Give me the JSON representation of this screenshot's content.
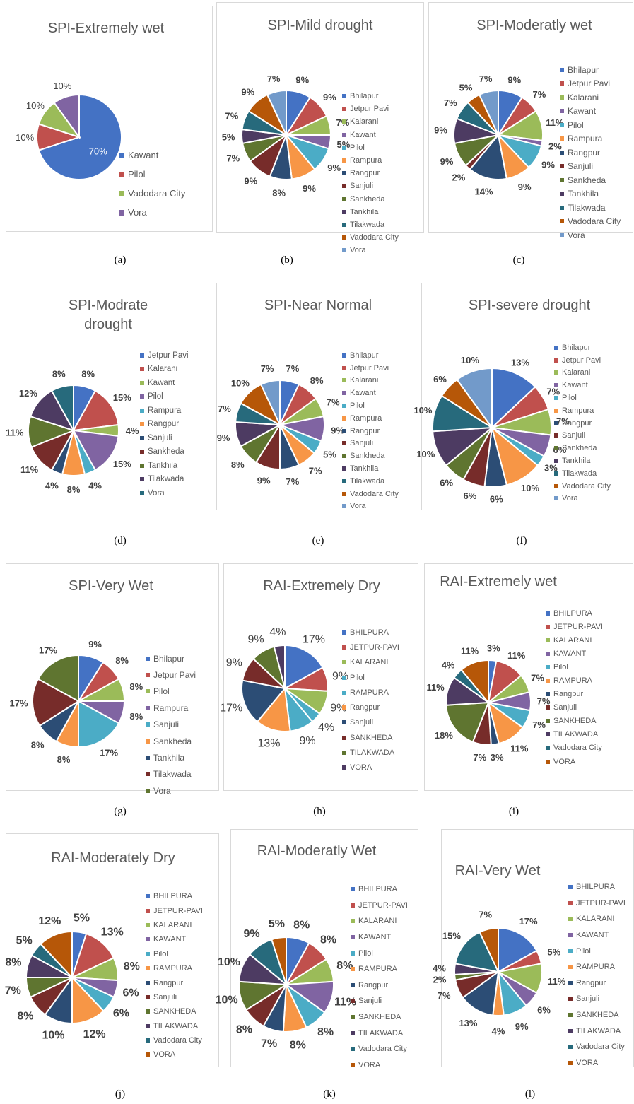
{
  "chart_data": [
    {
      "id": "a",
      "type": "pie",
      "title": "SPI-Extremely wet",
      "caption": "(a)",
      "categories": [
        "Kawant",
        "Pilol",
        "Vadodara City",
        "Vora"
      ],
      "values": [
        70,
        10,
        10,
        10
      ],
      "labels": [
        "70%",
        "10%",
        "10%",
        "10%"
      ],
      "colors": [
        "#4472C4",
        "#C0504D",
        "#9BBB59",
        "#8064A2"
      ]
    },
    {
      "id": "b",
      "type": "pie",
      "title": "SPI-Mild drought",
      "caption": "(b)",
      "categories": [
        "Bhilapur",
        "Jetpur Pavi",
        "Kalarani",
        "Kawant",
        "Pilol",
        "Rampura",
        "Rangpur",
        "Sanjuli",
        "Sankheda",
        "Tankhila",
        "Tilakwada",
        "Vadodara City",
        "Vora"
      ],
      "values": [
        9,
        9,
        7,
        5,
        9,
        9,
        8,
        9,
        7,
        5,
        7,
        9,
        7
      ],
      "labels": [
        "9%",
        "9%",
        "7%",
        "5%",
        "9%",
        "9%",
        "8%",
        "9%",
        "7%",
        "5%",
        "7%",
        "9%",
        "7%"
      ],
      "colors": [
        "#4472C4",
        "#C0504D",
        "#9BBB59",
        "#8064A2",
        "#4BACC6",
        "#F79646",
        "#2C4D75",
        "#772C2A",
        "#5F7530",
        "#4D3B62",
        "#276A7C",
        "#B65708",
        "#729ACA"
      ]
    },
    {
      "id": "c",
      "type": "pie",
      "title": "SPI-Moderatly wet",
      "caption": "(c)",
      "categories": [
        "Bhilapur",
        "Jetpur Pavi",
        "Kalarani",
        "Kawant",
        "Pilol",
        "Rampura",
        "Rangpur",
        "Sanjuli",
        "Sankheda",
        "Tankhila",
        "Tilakwada",
        "Vadodara City",
        "Vora"
      ],
      "values": [
        9,
        7,
        11,
        2,
        9,
        9,
        14,
        2,
        9,
        9,
        7,
        5,
        7
      ],
      "labels": [
        "9%",
        "7%",
        "11%",
        "2%",
        "9%",
        "9%",
        "14%",
        "2%",
        "9%",
        "9%",
        "7%",
        "5%",
        "7%"
      ],
      "colors": [
        "#4472C4",
        "#C0504D",
        "#9BBB59",
        "#8064A2",
        "#4BACC6",
        "#F79646",
        "#2C4D75",
        "#772C2A",
        "#5F7530",
        "#4D3B62",
        "#276A7C",
        "#B65708",
        "#729ACA"
      ]
    },
    {
      "id": "d",
      "type": "pie",
      "title": "SPI-Modrate drought",
      "caption": "(d)",
      "categories": [
        "Jetpur Pavi",
        "Kalarani",
        "Kawant",
        "Pilol",
        "Rampura",
        "Rangpur",
        "Sanjuli",
        "Sankheda",
        "Tankhila",
        "Tilakwada",
        "Vora"
      ],
      "values": [
        8,
        15,
        4,
        15,
        4,
        8,
        4,
        11,
        11,
        12,
        8
      ],
      "labels": [
        "8%",
        "15%",
        "4%",
        "15%",
        "4%",
        "8%",
        "4%",
        "11%",
        "11%",
        "12%",
        "8%"
      ],
      "colors": [
        "#4472C4",
        "#C0504D",
        "#9BBB59",
        "#8064A2",
        "#4BACC6",
        "#F79646",
        "#2C4D75",
        "#772C2A",
        "#5F7530",
        "#4D3B62",
        "#276A7C"
      ]
    },
    {
      "id": "e",
      "type": "pie",
      "title": "SPI-Near Normal",
      "caption": "(e)",
      "categories": [
        "Bhilapur",
        "Jetpur Pavi",
        "Kalarani",
        "Kawant",
        "Pilol",
        "Rampura",
        "Rangpur",
        "Sanjuli",
        "Sankheda",
        "Tankhila",
        "Tilakwada",
        "Vadodara City",
        "Vora"
      ],
      "values": [
        7,
        8,
        7,
        9,
        5,
        7,
        7,
        9,
        8,
        9,
        7,
        10,
        7
      ],
      "labels": [
        "7%",
        "8%",
        "7%",
        "9%",
        "5%",
        "7%",
        "7%",
        "9%",
        "8%",
        "9%",
        "7%",
        "10%",
        "7%"
      ],
      "colors": [
        "#4472C4",
        "#C0504D",
        "#9BBB59",
        "#8064A2",
        "#4BACC6",
        "#F79646",
        "#2C4D75",
        "#772C2A",
        "#5F7530",
        "#4D3B62",
        "#276A7C",
        "#B65708",
        "#729ACA"
      ]
    },
    {
      "id": "f",
      "type": "pie",
      "title": "SPI-severe drought",
      "caption": "(f)",
      "categories": [
        "Bhilapur",
        "Jetpur Pavi",
        "Kalarani",
        "Kawant",
        "Pilol",
        "Rampura",
        "Rangpur",
        "Sanjuli",
        "Sankheda",
        "Tankhila",
        "Tilakwada",
        "Vadodara City",
        "Vora"
      ],
      "values": [
        13,
        7,
        7,
        6,
        3,
        10,
        6,
        6,
        6,
        10,
        10,
        6,
        10
      ],
      "labels": [
        "13%",
        "7%",
        "7%",
        "6%",
        "3%",
        "10%",
        "6%",
        "6%",
        "6%",
        "10%",
        "10%",
        "6%",
        "10%"
      ],
      "colors": [
        "#4472C4",
        "#C0504D",
        "#9BBB59",
        "#8064A2",
        "#4BACC6",
        "#F79646",
        "#2C4D75",
        "#772C2A",
        "#5F7530",
        "#4D3B62",
        "#276A7C",
        "#B65708",
        "#729ACA"
      ]
    },
    {
      "id": "g",
      "type": "pie",
      "title": "SPI-Very Wet",
      "caption": "(g)",
      "categories": [
        "Bhilapur",
        "Jetpur Pavi",
        "Pilol",
        "Rampura",
        "Sanjuli",
        "Sankheda",
        "Tankhila",
        "Tilakwada",
        "Vora"
      ],
      "values": [
        9,
        8,
        8,
        8,
        17,
        8,
        8,
        17,
        17
      ],
      "labels": [
        "9%",
        "8%",
        "8%",
        "8%",
        "17%",
        "8%",
        "8%",
        "17%",
        "17%"
      ],
      "colors": [
        "#4472C4",
        "#C0504D",
        "#9BBB59",
        "#8064A2",
        "#4BACC6",
        "#F79646",
        "#2C4D75",
        "#772C2A",
        "#5F7530"
      ]
    },
    {
      "id": "h",
      "type": "pie",
      "title": "RAI-Extremely Dry",
      "caption": "(h)",
      "categories": [
        "BHILPURA",
        "JETPUR-PAVI",
        "KALARANI",
        "Pilol",
        "RAMPURA",
        "Rangpur",
        "Sanjuli",
        "SANKHEDA",
        "TILAKWADA",
        "VORA"
      ],
      "values": [
        17,
        9,
        9,
        4,
        9,
        13,
        17,
        9,
        9,
        4
      ],
      "labels": [
        "17%",
        "9%",
        "9%",
        "4%",
        "9%",
        "13%",
        "17%",
        "9%",
        "9%",
        "4%"
      ],
      "colors": [
        "#4472C4",
        "#C0504D",
        "#9BBB59",
        "#4BACC6",
        "#4BACC6",
        "#F79646",
        "#2C4D75",
        "#772C2A",
        "#5F7530",
        "#4D3B62"
      ]
    },
    {
      "id": "i",
      "type": "pie",
      "title": "RAI-Extremely wet",
      "caption": "(i)",
      "categories": [
        "BHILPURA",
        "JETPUR-PAVI",
        "KALARANI",
        "KAWANT",
        "Pilol",
        "RAMPURA",
        "Rangpur",
        "Sanjuli",
        "SANKHEDA",
        "TILAKWADA",
        "Vadodara City",
        "VORA"
      ],
      "values": [
        3,
        11,
        7,
        7,
        7,
        11,
        3,
        7,
        18,
        11,
        4,
        11
      ],
      "labels": [
        "3%",
        "11%",
        "7%",
        "7%",
        "7%",
        "11%",
        "3%",
        "7%",
        "18%",
        "11%",
        "4%",
        "11%"
      ],
      "colors": [
        "#4472C4",
        "#C0504D",
        "#9BBB59",
        "#8064A2",
        "#4BACC6",
        "#F79646",
        "#2C4D75",
        "#772C2A",
        "#5F7530",
        "#4D3B62",
        "#276A7C",
        "#B65708"
      ]
    },
    {
      "id": "j",
      "type": "pie",
      "title": "RAI-Moderately Dry",
      "caption": "(j)",
      "categories": [
        "BHILPURA",
        "JETPUR-PAVI",
        "KALARANI",
        "KAWANT",
        "Pilol",
        "RAMPURA",
        "Rangpur",
        "Sanjuli",
        "SANKHEDA",
        "TILAKWADA",
        "Vadodara City",
        "VORA"
      ],
      "values": [
        5,
        13,
        8,
        6,
        6,
        12,
        10,
        8,
        7,
        8,
        5,
        12
      ],
      "labels": [
        "5%",
        "13%",
        "8%",
        "6%",
        "6%",
        "12%",
        "10%",
        "8%",
        "7%",
        "8%",
        "5%",
        "12%"
      ],
      "colors": [
        "#4472C4",
        "#C0504D",
        "#9BBB59",
        "#8064A2",
        "#4BACC6",
        "#F79646",
        "#2C4D75",
        "#772C2A",
        "#5F7530",
        "#4D3B62",
        "#276A7C",
        "#B65708"
      ]
    },
    {
      "id": "k",
      "type": "pie",
      "title": "RAI-Moderatly Wet",
      "caption": "(k)",
      "categories": [
        "BHILPURA",
        "JETPUR-PAVI",
        "KALARANI",
        "KAWANT",
        "Pilol",
        "RAMPURA",
        "Rangpur",
        "Sanjuli",
        "SANKHEDA",
        "TILAKWADA",
        "Vadodara City",
        "VORA"
      ],
      "values": [
        8,
        8,
        8,
        11,
        8,
        8,
        7,
        8,
        10,
        10,
        9,
        5
      ],
      "labels": [
        "8%",
        "8%",
        "8%",
        "11%",
        "8%",
        "8%",
        "7%",
        "8%",
        "10%",
        "10%",
        "9%",
        "5%"
      ],
      "colors": [
        "#4472C4",
        "#C0504D",
        "#9BBB59",
        "#8064A2",
        "#4BACC6",
        "#F79646",
        "#2C4D75",
        "#772C2A",
        "#5F7530",
        "#4D3B62",
        "#276A7C",
        "#B65708"
      ]
    },
    {
      "id": "l",
      "type": "pie",
      "title": "RAI-Very Wet",
      "caption": "(l)",
      "categories": [
        "BHILPURA",
        "JETPUR-PAVI",
        "KALARANI",
        "KAWANT",
        "Pilol",
        "RAMPURA",
        "Rangpur",
        "Sanjuli",
        "SANKHEDA",
        "TILAKWADA",
        "Vadodara City",
        "VORA"
      ],
      "values": [
        17,
        5,
        11,
        6,
        9,
        4,
        13,
        7,
        2,
        4,
        15,
        7
      ],
      "labels": [
        "17%",
        "5%",
        "11%",
        "6%",
        "9%",
        "4%",
        "13%",
        "7%",
        "2%",
        "4%",
        "15%",
        "7%"
      ],
      "colors": [
        "#4472C4",
        "#C0504D",
        "#9BBB59",
        "#8064A2",
        "#4BACC6",
        "#F79646",
        "#2C4D75",
        "#772C2A",
        "#5F7530",
        "#4D3B62",
        "#276A7C",
        "#B65708"
      ]
    }
  ]
}
